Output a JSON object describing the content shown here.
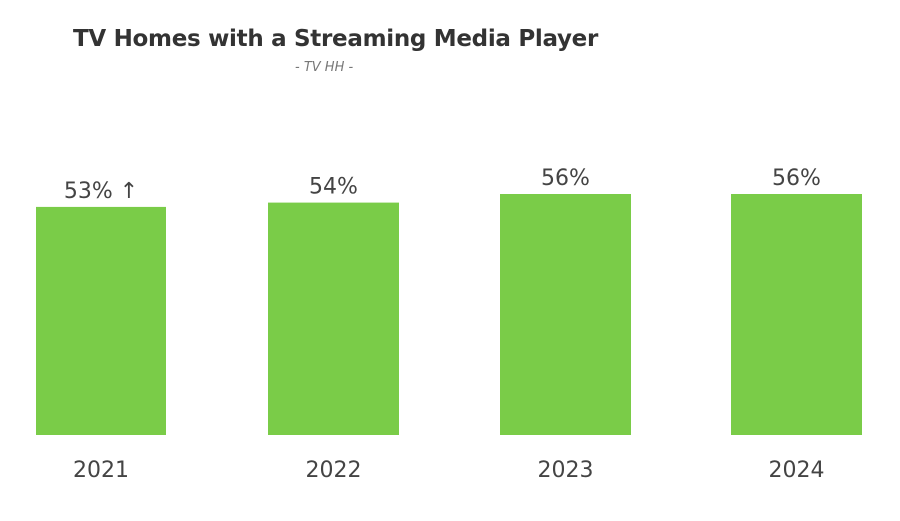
{
  "chart_data": {
    "type": "bar",
    "title": "TV Homes with a Streaming Media Player",
    "subtitle": "- TV HH -",
    "categories": [
      "2021",
      "2022",
      "2023",
      "2024"
    ],
    "values": [
      53,
      54,
      56,
      56
    ],
    "data_labels": [
      "53% ↑",
      "54%",
      "56%",
      "56%"
    ],
    "xlabel": "",
    "ylabel": "",
    "ylim": [
      0,
      56
    ],
    "grid": false,
    "bar_color": "#7ACC48"
  }
}
